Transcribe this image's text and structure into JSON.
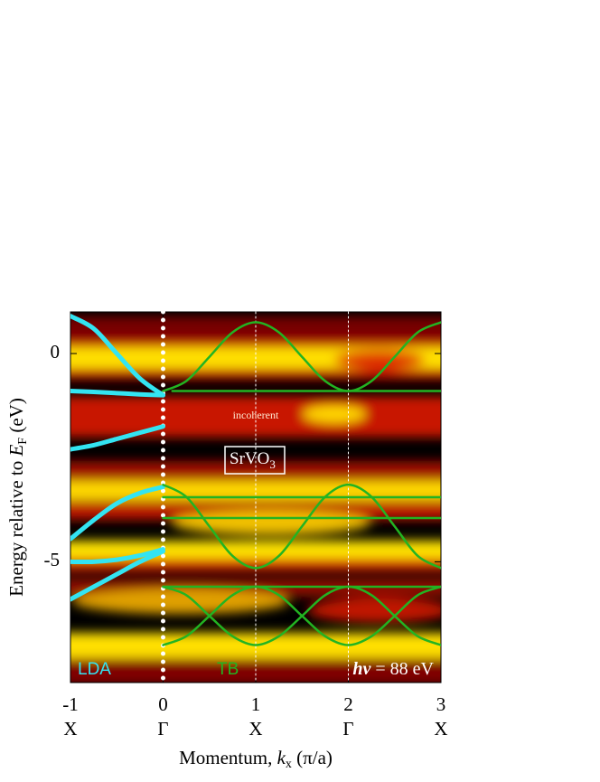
{
  "chart_data": {
    "type": "band-structure",
    "xlim": [
      -1,
      3
    ],
    "ylim": [
      -7.9,
      1.0
    ],
    "xticks": [
      -1,
      0,
      1,
      2,
      3
    ],
    "xtick_symbols": [
      "X",
      "Γ",
      "X",
      "Γ",
      "X"
    ],
    "yticks": [
      -5,
      0
    ],
    "x_label": {
      "prefix": "Momentum, ",
      "var": "k",
      "sub": "x",
      "suffix": " (π/a)"
    },
    "y_label": {
      "prefix": "Energy relative to ",
      "var": "E",
      "sub": "F",
      "suffix": " (eV)"
    },
    "annotations": {
      "incoherent": "incoherent",
      "compound": {
        "text": "SrVO",
        "sub": "3"
      },
      "photon": {
        "symbol": "hν",
        "text": " = 88 eV"
      }
    },
    "series": [
      {
        "name": "LDA",
        "color": "#33e4f2",
        "curves": [
          {
            "x": [
              -1,
              -0.75,
              -0.5,
              -0.25,
              0
            ],
            "values": [
              0.9,
              0.6,
              0.0,
              -0.6,
              -1.0
            ]
          },
          {
            "x": [
              -1,
              -0.75,
              -0.5,
              -0.25,
              0
            ],
            "values": [
              -0.9,
              -0.92,
              -0.95,
              -0.98,
              -1.0
            ]
          },
          {
            "x": [
              -1,
              -0.75,
              -0.5,
              -0.25,
              0
            ],
            "values": [
              -2.3,
              -2.2,
              -2.05,
              -1.9,
              -1.75
            ]
          },
          {
            "x": [
              -1,
              -0.75,
              -0.5,
              -0.25,
              0
            ],
            "values": [
              -4.45,
              -4.0,
              -3.6,
              -3.35,
              -3.2
            ]
          },
          {
            "x": [
              -1,
              -0.75,
              -0.5,
              -0.25,
              0
            ],
            "values": [
              -5.0,
              -5.0,
              -4.95,
              -4.85,
              -4.7
            ]
          },
          {
            "x": [
              -1,
              -0.75,
              -0.5,
              -0.25,
              0
            ],
            "values": [
              -5.9,
              -5.6,
              -5.3,
              -5.0,
              -4.75
            ]
          }
        ]
      },
      {
        "name": "TB",
        "color": "#22b422",
        "curves": [
          {
            "x": [
              0.1,
              3
            ],
            "values": [
              -0.9,
              -0.9
            ]
          },
          {
            "x": [
              0,
              0.25,
              0.5,
              0.75,
              1,
              1.25,
              1.5,
              1.75,
              2,
              2.25,
              2.5,
              2.75,
              3
            ],
            "values": [
              -0.9,
              -0.66,
              -0.08,
              0.51,
              0.75,
              0.51,
              -0.08,
              -0.66,
              -0.9,
              -0.66,
              -0.08,
              0.51,
              0.75
            ]
          },
          {
            "x": [
              0,
              3
            ],
            "values": [
              -3.45,
              -3.45
            ]
          },
          {
            "x": [
              0,
              3
            ],
            "values": [
              -3.95,
              -3.95
            ]
          },
          {
            "x": [
              0,
              0.25,
              0.5,
              0.75,
              1,
              1.25,
              1.5,
              1.75,
              2,
              2.25,
              2.5,
              2.75,
              3
            ],
            "values": [
              -3.15,
              -3.44,
              -4.15,
              -4.86,
              -5.15,
              -4.86,
              -4.15,
              -3.44,
              -3.15,
              -3.44,
              -4.15,
              -4.86,
              -5.15
            ]
          },
          {
            "x": [
              0,
              3
            ],
            "values": [
              -5.6,
              -5.6
            ]
          },
          {
            "x": [
              0,
              0.25,
              0.5,
              0.75,
              1,
              1.25,
              1.5,
              1.75,
              2,
              2.25,
              2.5,
              2.75,
              3
            ],
            "values": [
              -5.6,
              -5.8,
              -6.3,
              -6.79,
              -7.0,
              -6.79,
              -6.3,
              -5.8,
              -5.6,
              -5.8,
              -6.3,
              -6.79,
              -7.0
            ]
          },
          {
            "x": [
              0,
              0.25,
              0.5,
              0.75,
              1,
              1.25,
              1.5,
              1.75,
              2,
              2.25,
              2.5,
              2.75,
              3
            ],
            "values": [
              -7.0,
              -6.79,
              -6.3,
              -5.8,
              -5.6,
              -5.8,
              -6.3,
              -6.79,
              -7.0,
              -6.79,
              -6.3,
              -5.8,
              -5.6
            ]
          }
        ]
      }
    ]
  }
}
